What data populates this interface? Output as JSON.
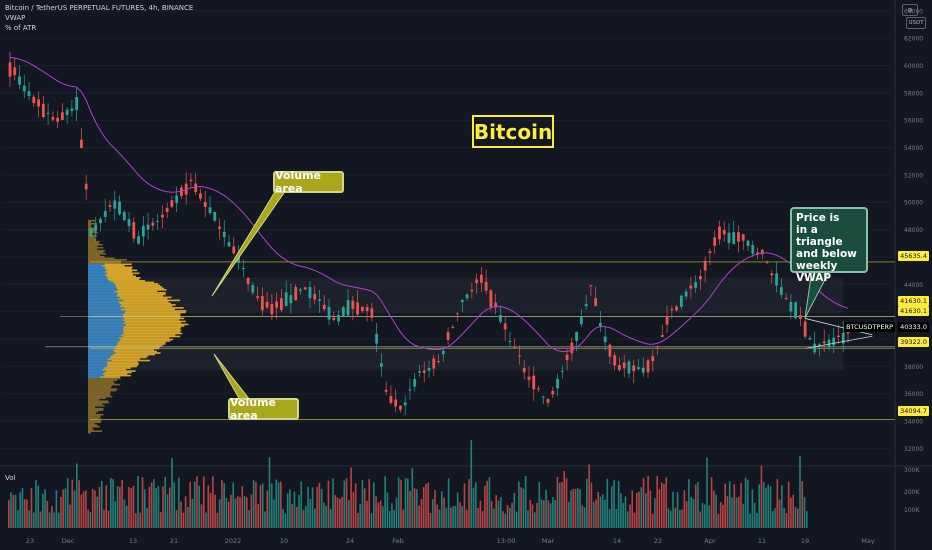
{
  "header": {
    "symbol_line": "Bitcoin / TetherUS PERPETUAL FUTURES, 4h, BINANCE",
    "indicator_1": "VWAP",
    "indicator_2": "% of ATR",
    "vol_label": "Vol"
  },
  "annotations": {
    "title": "Bitcoin",
    "volume_area_upper": "Volume area",
    "volume_area_lower": "Volume area",
    "note_lines": [
      "Price is",
      "in a triangle",
      "and below",
      "weekly VWAP"
    ]
  },
  "toolbar": {
    "currency_badge": "USDT",
    "settings_icon": "gear-icon"
  },
  "chart_data": {
    "type": "candlestick",
    "symbol": "BTCUSDTPERP",
    "last_price": "40333.0",
    "y_ticks": [
      32000,
      34000,
      36000,
      38000,
      40000,
      42000,
      44000,
      46000,
      48000,
      50000,
      52000,
      54000,
      56000,
      58000,
      60000,
      62000,
      64000
    ],
    "ylim": [
      31000,
      64500
    ],
    "x_ticks": [
      "23",
      "Dec",
      "13",
      "21",
      "2022",
      "10",
      "24",
      "Feb",
      "13:00",
      "Mar",
      "14",
      "22",
      "Apr",
      "11",
      "19",
      "May"
    ],
    "price_levels": [
      {
        "value": 45635.4,
        "label": "45635.4"
      },
      {
        "value": 41630.1,
        "label": "41630.1"
      },
      {
        "value": 41630.1,
        "label": "41630.1"
      },
      {
        "value": 39322.0,
        "label": "39322.0"
      },
      {
        "value": 34094.7,
        "label": "34094.7"
      }
    ],
    "volume_axis": [
      "300K",
      "200K",
      "100K"
    ],
    "price_path": [
      [
        0,
        59800
      ],
      [
        6,
        57000
      ],
      [
        10,
        56000
      ],
      [
        14,
        57200
      ],
      [
        17,
        48000
      ],
      [
        22,
        50000
      ],
      [
        27,
        47500
      ],
      [
        33,
        49200
      ],
      [
        38,
        51500
      ],
      [
        45,
        47800
      ],
      [
        52,
        43000
      ],
      [
        55,
        42100
      ],
      [
        62,
        43800
      ],
      [
        68,
        41500
      ],
      [
        72,
        42500
      ],
      [
        76,
        41900
      ],
      [
        79,
        36000
      ],
      [
        82,
        34800
      ],
      [
        86,
        37500
      ],
      [
        90,
        38300
      ],
      [
        95,
        42800
      ],
      [
        99,
        44500
      ],
      [
        104,
        40800
      ],
      [
        108,
        37800
      ],
      [
        113,
        35300
      ],
      [
        118,
        39200
      ],
      [
        122,
        43800
      ],
      [
        125,
        40000
      ],
      [
        128,
        37800
      ],
      [
        134,
        37900
      ],
      [
        139,
        42000
      ],
      [
        145,
        44500
      ],
      [
        149,
        47800
      ],
      [
        154,
        47200
      ],
      [
        158,
        46200
      ],
      [
        162,
        43600
      ],
      [
        166,
        41500
      ],
      [
        169,
        39400
      ],
      [
        173,
        39900
      ],
      [
        176,
        40350
      ]
    ],
    "triangle": {
      "upper": [
        [
          167,
          41500
        ],
        [
          179,
          40300
        ]
      ],
      "lower": [
        [
          167,
          39300
        ],
        [
          179,
          40200
        ]
      ]
    }
  },
  "colors": {
    "background": "#131722",
    "up": "#26a69a",
    "down": "#ef5350",
    "vwap": "#b042c8",
    "profile_value_area": "#2a7bc5",
    "profile_volume": "#d4a52a",
    "level_line": "#c9c23a",
    "title_border": "#ffeb3b",
    "callout_fill": "#a8a81a",
    "note_fill": "#1b4d3e"
  }
}
